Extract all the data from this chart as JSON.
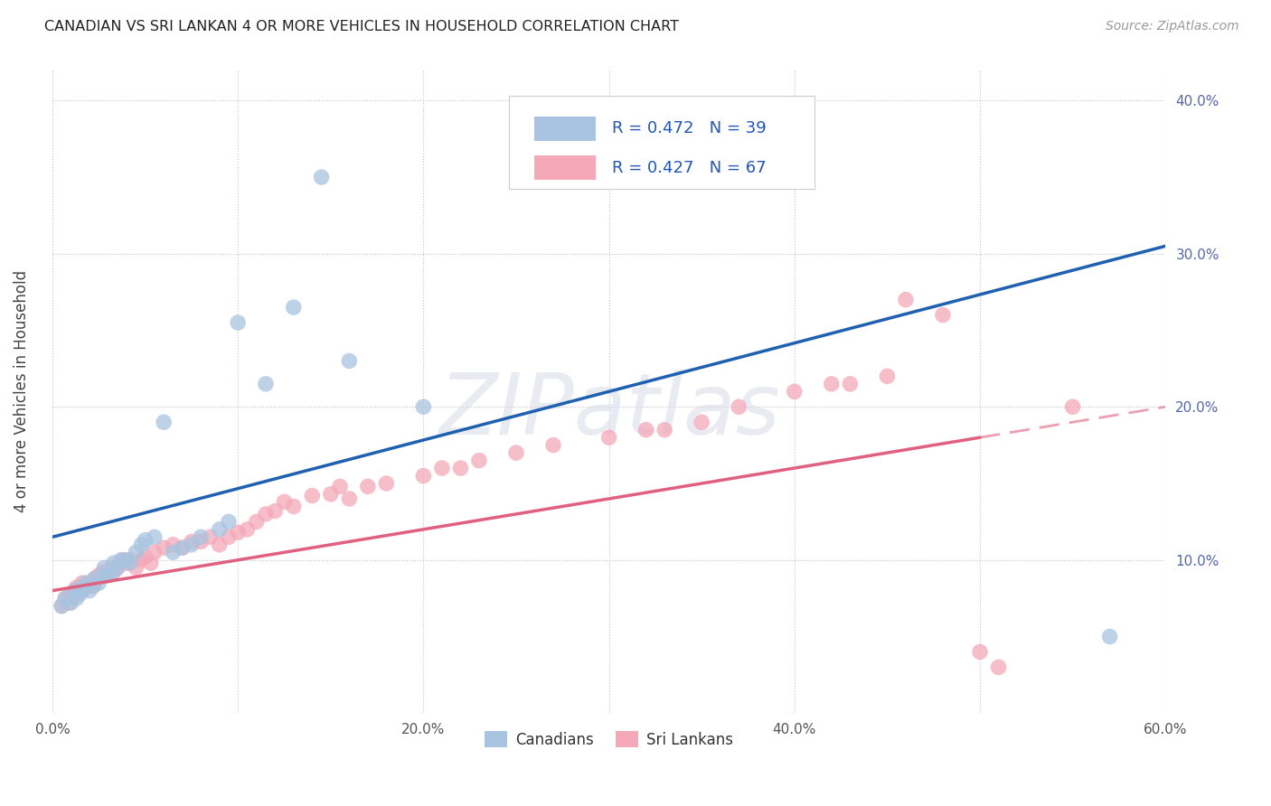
{
  "title": "CANADIAN VS SRI LANKAN 4 OR MORE VEHICLES IN HOUSEHOLD CORRELATION CHART",
  "source": "Source: ZipAtlas.com",
  "ylabel": "4 or more Vehicles in Household",
  "xlim": [
    0.0,
    0.6
  ],
  "ylim": [
    0.0,
    0.42
  ],
  "xticks": [
    0.0,
    0.1,
    0.2,
    0.3,
    0.4,
    0.5,
    0.6
  ],
  "yticks": [
    0.0,
    0.1,
    0.2,
    0.3,
    0.4
  ],
  "xtick_labels": [
    "0.0%",
    "",
    "20.0%",
    "",
    "40.0%",
    "",
    "60.0%"
  ],
  "ytick_labels_right": [
    "",
    "10.0%",
    "20.0%",
    "30.0%",
    "40.0%"
  ],
  "legend_labels": [
    "Canadians",
    "Sri Lankans"
  ],
  "r_canadian": 0.472,
  "n_canadian": 39,
  "r_srilankan": 0.427,
  "n_srilankan": 67,
  "canadian_color": "#a8c4e0",
  "srilankan_color": "#f4a8b8",
  "canadian_line_color": "#2060b0",
  "srilankan_line_color": "#e06080",
  "background_color": "#ffffff",
  "watermark_text": "ZIPatlas",
  "can_line_y0": 0.115,
  "can_line_y1": 0.305,
  "sri_line_y0": 0.08,
  "sri_line_y1": 0.2,
  "canadian_x": [
    0.005,
    0.007,
    0.01,
    0.012,
    0.013,
    0.015,
    0.016,
    0.018,
    0.02,
    0.022,
    0.023,
    0.025,
    0.027,
    0.028,
    0.03,
    0.032,
    0.033,
    0.035,
    0.037,
    0.04,
    0.042,
    0.045,
    0.048,
    0.05,
    0.055,
    0.06,
    0.065,
    0.07,
    0.075,
    0.08,
    0.09,
    0.095,
    0.1,
    0.115,
    0.13,
    0.145,
    0.16,
    0.2,
    0.57
  ],
  "canadian_y": [
    0.07,
    0.075,
    0.072,
    0.08,
    0.075,
    0.078,
    0.082,
    0.085,
    0.08,
    0.083,
    0.088,
    0.085,
    0.09,
    0.095,
    0.09,
    0.092,
    0.098,
    0.095,
    0.1,
    0.1,
    0.098,
    0.105,
    0.11,
    0.113,
    0.115,
    0.19,
    0.105,
    0.108,
    0.11,
    0.115,
    0.12,
    0.125,
    0.255,
    0.215,
    0.265,
    0.35,
    0.23,
    0.2,
    0.05
  ],
  "srilankan_x": [
    0.005,
    0.007,
    0.009,
    0.01,
    0.012,
    0.013,
    0.015,
    0.016,
    0.018,
    0.02,
    0.022,
    0.023,
    0.025,
    0.027,
    0.03,
    0.032,
    0.033,
    0.035,
    0.038,
    0.04,
    0.042,
    0.045,
    0.048,
    0.05,
    0.053,
    0.055,
    0.06,
    0.065,
    0.07,
    0.075,
    0.08,
    0.085,
    0.09,
    0.095,
    0.1,
    0.105,
    0.11,
    0.115,
    0.12,
    0.125,
    0.13,
    0.14,
    0.15,
    0.155,
    0.16,
    0.17,
    0.18,
    0.2,
    0.21,
    0.22,
    0.23,
    0.25,
    0.27,
    0.3,
    0.32,
    0.33,
    0.35,
    0.37,
    0.4,
    0.42,
    0.43,
    0.45,
    0.46,
    0.48,
    0.5,
    0.51,
    0.55
  ],
  "srilankan_y": [
    0.07,
    0.075,
    0.072,
    0.078,
    0.08,
    0.082,
    0.08,
    0.085,
    0.082,
    0.085,
    0.083,
    0.088,
    0.09,
    0.092,
    0.09,
    0.095,
    0.092,
    0.095,
    0.1,
    0.098,
    0.1,
    0.095,
    0.1,
    0.102,
    0.098,
    0.105,
    0.108,
    0.11,
    0.108,
    0.112,
    0.112,
    0.115,
    0.11,
    0.115,
    0.118,
    0.12,
    0.125,
    0.13,
    0.132,
    0.138,
    0.135,
    0.142,
    0.143,
    0.148,
    0.14,
    0.148,
    0.15,
    0.155,
    0.16,
    0.16,
    0.165,
    0.17,
    0.175,
    0.18,
    0.185,
    0.185,
    0.19,
    0.2,
    0.21,
    0.215,
    0.215,
    0.22,
    0.27,
    0.26,
    0.04,
    0.03,
    0.2
  ]
}
